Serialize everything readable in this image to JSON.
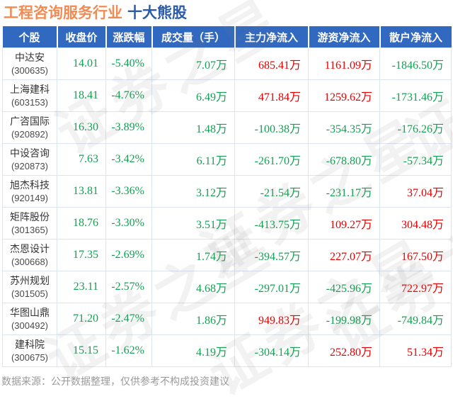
{
  "title": {
    "industry": "工程咨询服务行业",
    "suffix": "十大熊股"
  },
  "colors": {
    "header_bg": "#3168c0",
    "title_orange": "#f28a52",
    "title_blue": "#2a5cab",
    "inflow_red": "#e60000",
    "outflow_green": "#14a053"
  },
  "watermark": {
    "text": "证券之星"
  },
  "footer": {
    "note": "数据来源：公开数据整理，仅供参考不构成投资建议"
  },
  "table": {
    "headers": [
      "个股",
      "收盘价",
      "涨跌幅",
      "成交量（手）",
      "主力净流入",
      "游资净流入",
      "散户净流入"
    ],
    "rows": [
      {
        "name": "中达安",
        "code": "(300635)",
        "values": [
          {
            "text": "14.01",
            "color": "green"
          },
          {
            "text": "-5.40%",
            "color": "green"
          },
          {
            "text": "7.07万",
            "color": "green"
          },
          {
            "text": "685.41万",
            "color": "red"
          },
          {
            "text": "1161.09万",
            "color": "red"
          },
          {
            "text": "-1846.50万",
            "color": "green"
          }
        ]
      },
      {
        "name": "上海建科",
        "code": "(603153)",
        "values": [
          {
            "text": "18.41",
            "color": "green"
          },
          {
            "text": "-4.76%",
            "color": "green"
          },
          {
            "text": "6.49万",
            "color": "green"
          },
          {
            "text": "471.84万",
            "color": "red"
          },
          {
            "text": "1259.62万",
            "color": "red"
          },
          {
            "text": "-1731.46万",
            "color": "green"
          }
        ]
      },
      {
        "name": "广咨国际",
        "code": "(920892)",
        "values": [
          {
            "text": "16.30",
            "color": "green"
          },
          {
            "text": "-3.89%",
            "color": "green"
          },
          {
            "text": "1.48万",
            "color": "green"
          },
          {
            "text": "-100.38万",
            "color": "green"
          },
          {
            "text": "-354.35万",
            "color": "green"
          },
          {
            "text": "-176.26万",
            "color": "green"
          }
        ]
      },
      {
        "name": "中设咨询",
        "code": "(920873)",
        "values": [
          {
            "text": "7.63",
            "color": "green"
          },
          {
            "text": "-3.42%",
            "color": "green"
          },
          {
            "text": "6.11万",
            "color": "green"
          },
          {
            "text": "-261.70万",
            "color": "green"
          },
          {
            "text": "-678.80万",
            "color": "green"
          },
          {
            "text": "-57.34万",
            "color": "green"
          }
        ]
      },
      {
        "name": "旭杰科技",
        "code": "(920149)",
        "values": [
          {
            "text": "13.81",
            "color": "green"
          },
          {
            "text": "-3.36%",
            "color": "green"
          },
          {
            "text": "3.12万",
            "color": "green"
          },
          {
            "text": "-21.54万",
            "color": "green"
          },
          {
            "text": "-231.17万",
            "color": "green"
          },
          {
            "text": "37.04万",
            "color": "red"
          }
        ]
      },
      {
        "name": "矩阵股份",
        "code": "(301365)",
        "values": [
          {
            "text": "18.76",
            "color": "green"
          },
          {
            "text": "-3.30%",
            "color": "green"
          },
          {
            "text": "3.51万",
            "color": "green"
          },
          {
            "text": "-413.75万",
            "color": "green"
          },
          {
            "text": "109.27万",
            "color": "red"
          },
          {
            "text": "304.48万",
            "color": "red"
          }
        ]
      },
      {
        "name": "杰恩设计",
        "code": "(300668)",
        "values": [
          {
            "text": "17.35",
            "color": "green"
          },
          {
            "text": "-2.69%",
            "color": "green"
          },
          {
            "text": "1.74万",
            "color": "green"
          },
          {
            "text": "-394.57万",
            "color": "green"
          },
          {
            "text": "227.07万",
            "color": "red"
          },
          {
            "text": "167.50万",
            "color": "red"
          }
        ]
      },
      {
        "name": "苏州规划",
        "code": "(301505)",
        "values": [
          {
            "text": "23.11",
            "color": "green"
          },
          {
            "text": "-2.57%",
            "color": "green"
          },
          {
            "text": "4.68万",
            "color": "green"
          },
          {
            "text": "-297.01万",
            "color": "green"
          },
          {
            "text": "-425.96万",
            "color": "green"
          },
          {
            "text": "722.97万",
            "color": "red"
          }
        ]
      },
      {
        "name": "华图山鼎",
        "code": "(300492)",
        "values": [
          {
            "text": "71.20",
            "color": "green"
          },
          {
            "text": "-2.47%",
            "color": "green"
          },
          {
            "text": "1.86万",
            "color": "green"
          },
          {
            "text": "949.83万",
            "color": "red"
          },
          {
            "text": "-199.98万",
            "color": "green"
          },
          {
            "text": "-749.84万",
            "color": "green"
          }
        ]
      },
      {
        "name": "建科院",
        "code": "(300675)",
        "values": [
          {
            "text": "15.15",
            "color": "green"
          },
          {
            "text": "-1.62%",
            "color": "green"
          },
          {
            "text": "4.19万",
            "color": "green"
          },
          {
            "text": "-304.14万",
            "color": "green"
          },
          {
            "text": "252.80万",
            "color": "red"
          },
          {
            "text": "51.34万",
            "color": "red"
          }
        ]
      }
    ]
  },
  "chart_data": {
    "type": "table",
    "title": "工程咨询服务行业 十大熊股",
    "columns": [
      "个股",
      "代码",
      "收盘价",
      "涨跌幅(%)",
      "成交量(万手)",
      "主力净流入(万)",
      "游资净流入(万)",
      "散户净流入(万)"
    ],
    "rows": [
      [
        "中达安",
        "300635",
        14.01,
        -5.4,
        7.07,
        685.41,
        1161.09,
        -1846.5
      ],
      [
        "上海建科",
        "603153",
        18.41,
        -4.76,
        6.49,
        471.84,
        1259.62,
        -1731.46
      ],
      [
        "广咨国际",
        "920892",
        16.3,
        -3.89,
        1.48,
        -100.38,
        -354.35,
        -176.26
      ],
      [
        "中设咨询",
        "920873",
        7.63,
        -3.42,
        6.11,
        -261.7,
        -678.8,
        -57.34
      ],
      [
        "旭杰科技",
        "920149",
        13.81,
        -3.36,
        3.12,
        -21.54,
        -231.17,
        37.04
      ],
      [
        "矩阵股份",
        "301365",
        18.76,
        -3.3,
        3.51,
        -413.75,
        109.27,
        304.48
      ],
      [
        "杰恩设计",
        "300668",
        17.35,
        -2.69,
        1.74,
        -394.57,
        227.07,
        167.5
      ],
      [
        "苏州规划",
        "301505",
        23.11,
        -2.57,
        4.68,
        -297.01,
        -425.96,
        722.97
      ],
      [
        "华图山鼎",
        "300492",
        71.2,
        -2.47,
        1.86,
        949.83,
        -199.98,
        -749.84
      ],
      [
        "建科院",
        "300675",
        15.15,
        -1.62,
        4.19,
        -304.14,
        252.8,
        51.34
      ]
    ]
  }
}
